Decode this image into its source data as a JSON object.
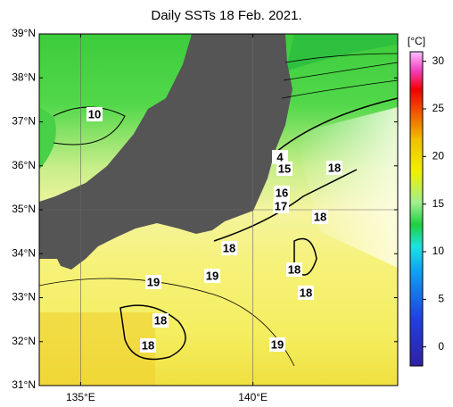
{
  "title": "Daily SSTs 18 Feb. 2021.",
  "map": {
    "xlim": [
      133.8,
      144.2
    ],
    "ylim": [
      31,
      39
    ],
    "xticks": [
      {
        "value": 135,
        "label": "135°E"
      },
      {
        "value": 140,
        "label": "140°E"
      }
    ],
    "yticks": [
      {
        "value": 39,
        "label": "39°N"
      },
      {
        "value": 38,
        "label": "38°N"
      },
      {
        "value": 37,
        "label": "37°N"
      },
      {
        "value": 36,
        "label": "36°N"
      },
      {
        "value": 35,
        "label": "35°N"
      },
      {
        "value": 34,
        "label": "34°N"
      },
      {
        "value": 33,
        "label": "33°N"
      },
      {
        "value": 32,
        "label": "32°N"
      },
      {
        "value": 31,
        "label": "31°N"
      }
    ],
    "grid": true,
    "contour_labels": [
      10,
      4,
      15,
      16,
      17,
      18,
      18,
      18,
      18,
      18,
      19,
      19,
      18,
      18,
      19
    ]
  },
  "colorbar": {
    "unit": "[°C]",
    "ylim": [
      -2,
      31
    ],
    "ticks": [
      0,
      5,
      10,
      15,
      20,
      25,
      30
    ]
  }
}
